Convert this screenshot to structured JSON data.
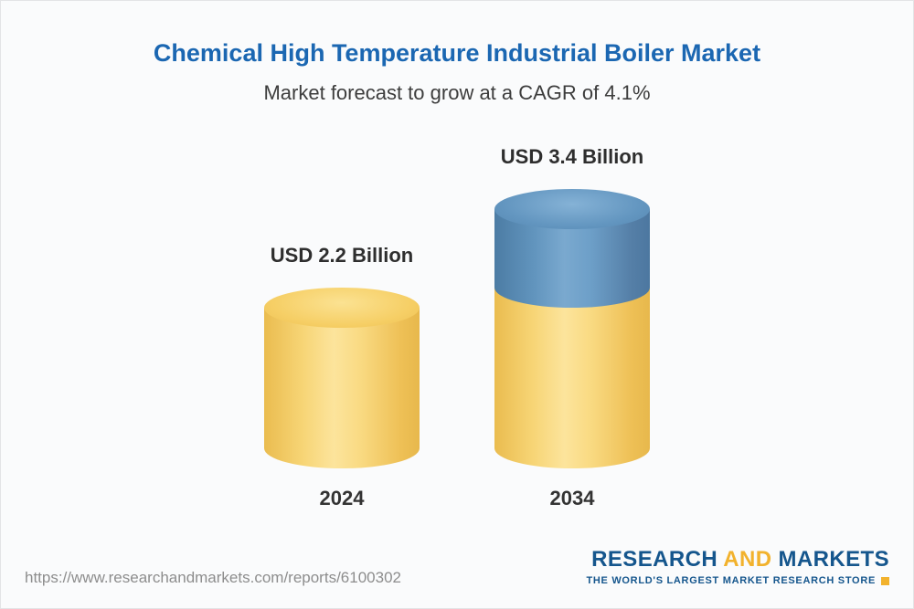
{
  "page": {
    "title": "Chemical High Temperature Industrial Boiler Market",
    "subtitle": "Market forecast to grow at a CAGR of 4.1%"
  },
  "chart_data": {
    "type": "bar",
    "bar_style": "3d-cylinder",
    "title": "Chemical High Temperature Industrial Boiler Market",
    "subtitle": "Market forecast to grow at a CAGR of 4.1%",
    "cagr_percent": 4.1,
    "unit": "USD Billion",
    "categories": [
      "2024",
      "2034"
    ],
    "values": [
      2.2,
      3.4
    ],
    "value_labels": [
      "USD 2.2 Billion",
      "USD 3.4 Billion"
    ],
    "colors": {
      "base_segment": "#F6CF66",
      "growth_segment": "#5E92BC",
      "title_text": "#1B67B2"
    },
    "legend": "none",
    "grid": "off",
    "bars": [
      {
        "category": "2024",
        "label": "USD 2.2 Billion",
        "segments": [
          {
            "name": "base",
            "value": 2.2,
            "color": "#F6CF66"
          }
        ]
      },
      {
        "category": "2034",
        "label": "USD 3.4 Billion",
        "segments": [
          {
            "name": "base",
            "value": 2.2,
            "color": "#F6CF66"
          },
          {
            "name": "growth",
            "value": 1.2,
            "color": "#5E92BC"
          }
        ]
      }
    ]
  },
  "footer": {
    "url": "https://www.researchandmarkets.com/reports/6100302",
    "logo": {
      "research": "RESEARCH",
      "and": "AND",
      "markets": "MARKETS",
      "tagline": "THE WORLD'S LARGEST MARKET RESEARCH STORE"
    }
  }
}
